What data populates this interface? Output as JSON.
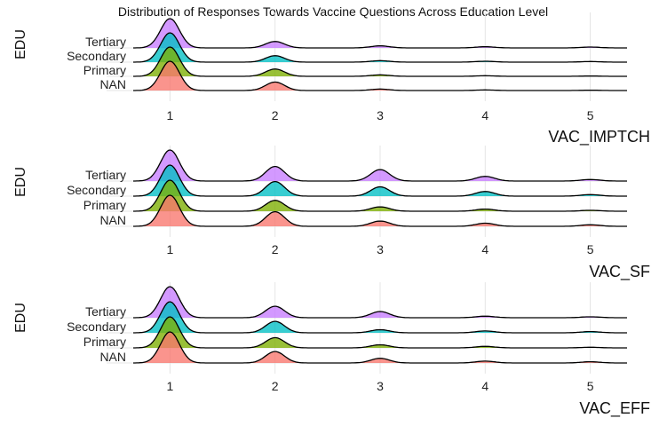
{
  "title": "Distribution of Responses Towards Vaccine Questions Across Education Level",
  "colors": {
    "NAN": "#F8766D",
    "Primary": "#7CAE00",
    "Secondary": "#00BFC4",
    "Tertiary": "#C77CFF",
    "grid": "#e4e4e4",
    "line": "#000000"
  },
  "chart_data": [
    {
      "type": "ridgeline",
      "xlabel": "VAC_IMPTCH",
      "ylabel": "EDU",
      "categories": [
        "NAN",
        "Primary",
        "Secondary",
        "Tertiary"
      ],
      "x_ticks": [
        1,
        2,
        3,
        4,
        5
      ],
      "xlim": [
        0.65,
        5.35
      ],
      "series": [
        {
          "name": "NAN",
          "peaks": [
            1,
            0.29,
            0.05,
            0.02,
            0.01
          ]
        },
        {
          "name": "Primary",
          "peaks": [
            1,
            0.25,
            0.05,
            0.02,
            0.01
          ]
        },
        {
          "name": "Secondary",
          "peaks": [
            1,
            0.22,
            0.05,
            0.03,
            0.02
          ]
        },
        {
          "name": "Tertiary",
          "peaks": [
            1,
            0.22,
            0.07,
            0.04,
            0.03
          ]
        }
      ]
    },
    {
      "type": "ridgeline",
      "xlabel": "VAC_SF",
      "ylabel": "EDU",
      "categories": [
        "NAN",
        "Primary",
        "Secondary",
        "Tertiary"
      ],
      "x_ticks": [
        1,
        2,
        3,
        4,
        5
      ],
      "xlim": [
        0.65,
        5.35
      ],
      "series": [
        {
          "name": "NAN",
          "peaks": [
            1,
            0.47,
            0.17,
            0.1,
            0.05
          ]
        },
        {
          "name": "Primary",
          "peaks": [
            1,
            0.35,
            0.14,
            0.07,
            0.03
          ]
        },
        {
          "name": "Secondary",
          "peaks": [
            1,
            0.47,
            0.3,
            0.15,
            0.05
          ]
        },
        {
          "name": "Tertiary",
          "peaks": [
            1,
            0.47,
            0.37,
            0.15,
            0.05
          ]
        }
      ]
    },
    {
      "type": "ridgeline",
      "xlabel": "VAC_EFF",
      "ylabel": "EDU",
      "categories": [
        "NAN",
        "Primary",
        "Secondary",
        "Tertiary"
      ],
      "x_ticks": [
        1,
        2,
        3,
        4,
        5
      ],
      "xlim": [
        0.65,
        5.35
      ],
      "series": [
        {
          "name": "NAN",
          "peaks": [
            1,
            0.37,
            0.15,
            0.06,
            0.04
          ]
        },
        {
          "name": "Primary",
          "peaks": [
            1,
            0.33,
            0.1,
            0.05,
            0.02
          ]
        },
        {
          "name": "Secondary",
          "peaks": [
            1,
            0.37,
            0.1,
            0.06,
            0.04
          ]
        },
        {
          "name": "Tertiary",
          "peaks": [
            1,
            0.37,
            0.2,
            0.05,
            0.03
          ]
        }
      ]
    }
  ]
}
